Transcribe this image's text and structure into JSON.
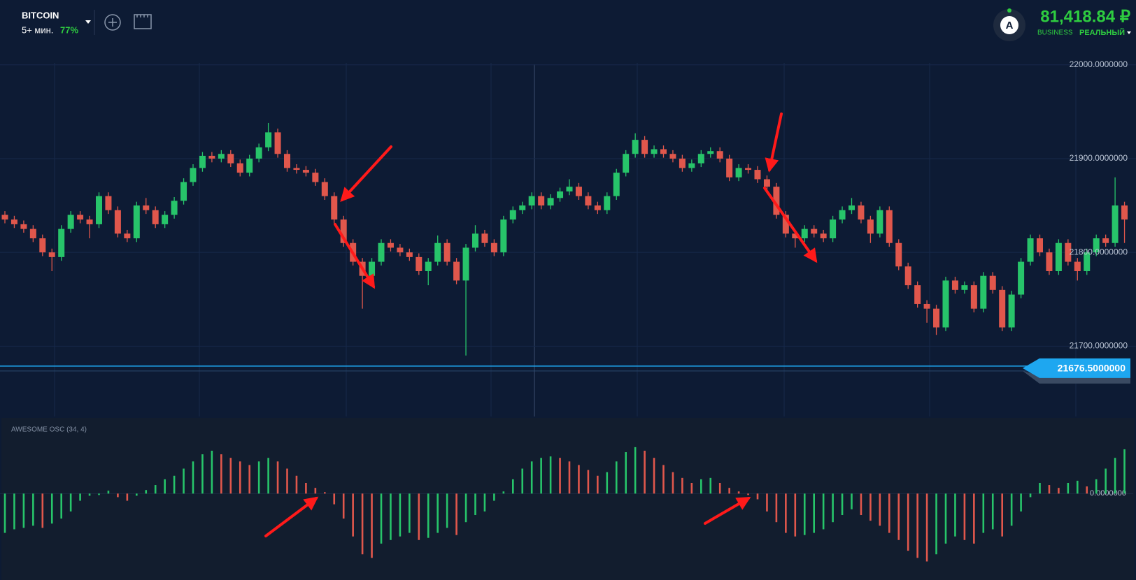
{
  "header": {
    "asset": "BITCOIN",
    "timeframe": "5+ мин.",
    "payout": "77%"
  },
  "account": {
    "avatar": "A",
    "balance": "81,418.84 ₽",
    "type": "BUSINESS",
    "mode": "РЕАЛЬНЫЙ"
  },
  "chart_data": [
    {
      "type": "candlestick",
      "open": [
        21840,
        21835,
        21830,
        21825,
        21815,
        21800,
        21795,
        21825,
        21840,
        21835,
        21830,
        21860,
        21845,
        21820,
        21815,
        21850,
        21845,
        21830,
        21840,
        21855,
        21875,
        21890,
        21903,
        21900,
        21905,
        21895,
        21885,
        21900,
        21912,
        21928,
        21905,
        21890,
        21888,
        21885,
        21875,
        21860,
        21835,
        21810,
        21790,
        21775,
        21790,
        21810,
        21805,
        21800,
        21795,
        21780,
        21790,
        21810,
        21790,
        21770,
        21805,
        21820,
        21810,
        21800,
        21835,
        21845,
        21850,
        21860,
        21850,
        21858,
        21865,
        21870,
        21860,
        21850,
        21845,
        21860,
        21885,
        21905,
        21920,
        21905,
        21910,
        21905,
        21900,
        21890,
        21895,
        21905,
        21908,
        21900,
        21880,
        21890,
        21888,
        21878,
        21870,
        21840,
        21820,
        21815,
        21825,
        21820,
        21815,
        21835,
        21845,
        21850,
        21835,
        21820,
        21845,
        21810,
        21785,
        21765,
        21745,
        21740,
        21720,
        21770,
        21760,
        21765,
        21740,
        21775,
        21760,
        21720,
        21755,
        21790,
        21815,
        21800,
        21780,
        21810,
        21790,
        21780,
        21800,
        21815,
        21810,
        21850
      ],
      "high": [
        21844,
        21839,
        21834,
        21829,
        21819,
        21804,
        21829,
        21844,
        21844,
        21839,
        21864,
        21864,
        21849,
        21824,
        21854,
        21858,
        21849,
        21844,
        21859,
        21879,
        21894,
        21907,
        21907,
        21909,
        21909,
        21899,
        21904,
        21916,
        21938,
        21932,
        21909,
        21894,
        21892,
        21889,
        21879,
        21864,
        21839,
        21814,
        21794,
        21794,
        21814,
        21814,
        21809,
        21804,
        21799,
        21794,
        21818,
        21814,
        21794,
        21809,
        21829,
        21824,
        21814,
        21839,
        21849,
        21854,
        21864,
        21864,
        21862,
        21869,
        21878,
        21874,
        21864,
        21854,
        21864,
        21889,
        21909,
        21927,
        21924,
        21914,
        21914,
        21909,
        21904,
        21899,
        21909,
        21912,
        21912,
        21904,
        21894,
        21894,
        21892,
        21882,
        21874,
        21844,
        21824,
        21829,
        21829,
        21824,
        21839,
        21849,
        21858,
        21854,
        21839,
        21849,
        21849,
        21814,
        21789,
        21769,
        21749,
        21744,
        21774,
        21774,
        21769,
        21769,
        21779,
        21779,
        21764,
        21759,
        21794,
        21819,
        21819,
        21804,
        21814,
        21814,
        21794,
        21804,
        21819,
        21819,
        21880,
        21854
      ],
      "low": [
        21831,
        21826,
        21821,
        21811,
        21796,
        21780,
        21791,
        21821,
        21831,
        21815,
        21826,
        21841,
        21816,
        21811,
        21811,
        21841,
        21826,
        21826,
        21836,
        21851,
        21871,
        21886,
        21896,
        21896,
        21891,
        21881,
        21881,
        21896,
        21908,
        21901,
        21886,
        21884,
        21881,
        21871,
        21856,
        21831,
        21806,
        21786,
        21740,
        21771,
        21786,
        21801,
        21796,
        21791,
        21776,
        21765,
        21786,
        21786,
        21766,
        21690,
        21801,
        21806,
        21796,
        21796,
        21831,
        21841,
        21846,
        21846,
        21846,
        21854,
        21861,
        21856,
        21846,
        21841,
        21841,
        21856,
        21881,
        21901,
        21901,
        21901,
        21901,
        21896,
        21886,
        21886,
        21891,
        21901,
        21896,
        21876,
        21876,
        21884,
        21874,
        21866,
        21836,
        21816,
        21805,
        21811,
        21816,
        21811,
        21811,
        21831,
        21841,
        21831,
        21810,
        21816,
        21806,
        21781,
        21761,
        21741,
        21725,
        21712,
        21716,
        21756,
        21756,
        21736,
        21736,
        21756,
        21716,
        21716,
        21751,
        21786,
        21796,
        21776,
        21776,
        21786,
        21770,
        21776,
        21796,
        21806,
        21806,
        21810
      ],
      "close": [
        21835,
        21830,
        21825,
        21815,
        21800,
        21795,
        21825,
        21840,
        21835,
        21830,
        21860,
        21845,
        21820,
        21815,
        21850,
        21845,
        21830,
        21840,
        21855,
        21875,
        21890,
        21903,
        21900,
        21905,
        21895,
        21885,
        21900,
        21912,
        21928,
        21905,
        21890,
        21888,
        21885,
        21875,
        21860,
        21835,
        21810,
        21790,
        21775,
        21790,
        21810,
        21805,
        21800,
        21795,
        21780,
        21790,
        21810,
        21790,
        21770,
        21805,
        21820,
        21810,
        21800,
        21835,
        21845,
        21850,
        21860,
        21850,
        21858,
        21865,
        21870,
        21860,
        21850,
        21845,
        21860,
        21885,
        21905,
        21920,
        21905,
        21910,
        21905,
        21900,
        21890,
        21895,
        21905,
        21908,
        21900,
        21880,
        21890,
        21888,
        21878,
        21870,
        21840,
        21820,
        21815,
        21825,
        21820,
        21815,
        21835,
        21845,
        21850,
        21835,
        21820,
        21845,
        21810,
        21785,
        21765,
        21745,
        21740,
        21720,
        21770,
        21760,
        21765,
        21740,
        21775,
        21760,
        21720,
        21755,
        21790,
        21815,
        21800,
        21780,
        21810,
        21790,
        21780,
        21800,
        21815,
        21810,
        21850,
        21835
      ],
      "up_color": "#27c46a",
      "down_color": "#e0574c",
      "ylim": [
        21625,
        22011
      ],
      "yticks": [
        {
          "value": 21700,
          "label": "21700.0000000"
        },
        {
          "value": 21800,
          "label": "21800.0000000"
        },
        {
          "value": 21900,
          "label": "21900.0000000"
        },
        {
          "value": 22000,
          "label": "22000.0000000"
        }
      ],
      "current_price": {
        "value": 21676.5,
        "label": "21676.5000000"
      },
      "current_color": "#1ea7f0"
    },
    {
      "type": "bar",
      "title": "AWESOME OSC (34, 4)",
      "values": [
        -55,
        -50,
        -48,
        -45,
        -48,
        -42,
        -35,
        -25,
        -10,
        -3,
        -2,
        4,
        -5,
        -10,
        -3,
        5,
        12,
        20,
        25,
        35,
        45,
        55,
        60,
        55,
        50,
        45,
        40,
        45,
        50,
        45,
        35,
        25,
        15,
        8,
        2,
        -15,
        -35,
        -60,
        -85,
        -90,
        -70,
        -65,
        -60,
        -55,
        -65,
        -62,
        -55,
        -48,
        -58,
        -40,
        -30,
        -25,
        -10,
        3,
        20,
        35,
        45,
        50,
        52,
        50,
        45,
        40,
        33,
        25,
        30,
        45,
        58,
        65,
        60,
        50,
        40,
        30,
        22,
        15,
        20,
        22,
        15,
        8,
        3,
        -2,
        -8,
        -25,
        -40,
        -55,
        -60,
        -58,
        -55,
        -50,
        -40,
        -30,
        -22,
        -30,
        -38,
        -45,
        -55,
        -65,
        -80,
        -90,
        -95,
        -85,
        -70,
        -60,
        -65,
        -70,
        -55,
        -50,
        -60,
        -45,
        -25,
        -5,
        15,
        12,
        8,
        15,
        18,
        10,
        20,
        35,
        50,
        62
      ],
      "up_color": "#27c46a",
      "down_color": "#e0574c",
      "ylim": [
        -119,
        104
      ],
      "yticks": [
        {
          "value": 0,
          "label": "0.0000000"
        }
      ]
    }
  ]
}
